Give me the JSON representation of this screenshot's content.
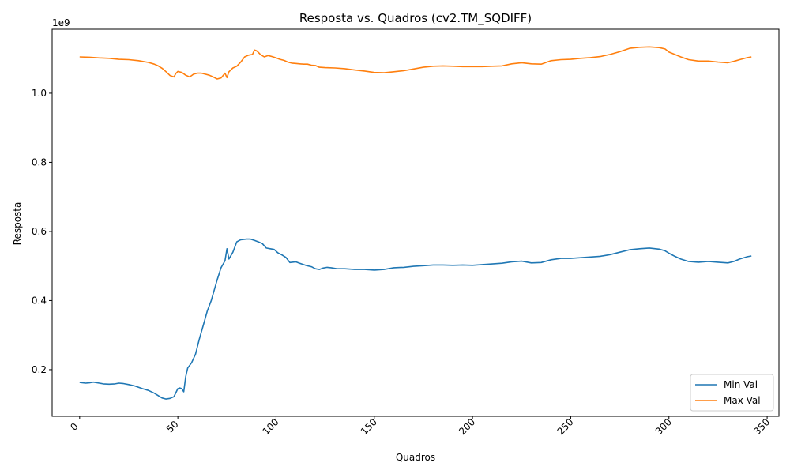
{
  "chart_data": {
    "type": "line",
    "title": "Resposta vs. Quadros (cv2.TM_SQDIFF)",
    "xlabel": "Quadros",
    "ylabel": "Resposta",
    "y_offset_text": "1e9",
    "xlim": [
      -14,
      356
    ],
    "ylim": [
      0.065,
      1.185
    ],
    "x_ticks": [
      0,
      50,
      100,
      150,
      200,
      250,
      300,
      350
    ],
    "x_tick_labels": [
      "0",
      "50",
      "100",
      "150",
      "200",
      "250",
      "300",
      "350"
    ],
    "y_ticks": [
      0.2,
      0.4,
      0.6,
      0.8,
      1.0
    ],
    "y_tick_labels": [
      "0.2",
      "0.4",
      "0.6",
      "0.8",
      "1.0"
    ],
    "grid": false,
    "legend_position": "bottom-right",
    "series": [
      {
        "name": "Min Val",
        "color": "#1f77b4",
        "x": [
          0,
          3,
          5,
          7,
          10,
          12,
          15,
          18,
          20,
          22,
          25,
          28,
          30,
          32,
          35,
          38,
          40,
          42,
          44,
          46,
          48,
          50,
          51,
          52,
          53,
          54,
          55,
          57,
          59,
          61,
          63,
          65,
          67,
          68,
          70,
          72,
          74,
          75,
          76,
          78,
          80,
          82,
          85,
          87,
          89,
          91,
          93,
          95,
          97,
          99,
          101,
          103,
          105,
          107,
          110,
          112,
          115,
          118,
          120,
          122,
          124,
          126,
          128,
          131,
          135,
          140,
          145,
          150,
          155,
          160,
          165,
          170,
          175,
          180,
          185,
          190,
          195,
          200,
          205,
          210,
          215,
          220,
          225,
          230,
          235,
          240,
          245,
          250,
          255,
          260,
          265,
          270,
          275,
          280,
          285,
          290,
          295,
          298,
          300,
          303,
          306,
          310,
          315,
          320,
          325,
          330,
          333,
          336,
          340,
          342
        ],
        "y": [
          0.163,
          0.161,
          0.162,
          0.164,
          0.161,
          0.159,
          0.158,
          0.159,
          0.161,
          0.16,
          0.157,
          0.153,
          0.149,
          0.145,
          0.14,
          0.132,
          0.125,
          0.118,
          0.115,
          0.117,
          0.122,
          0.145,
          0.147,
          0.145,
          0.136,
          0.18,
          0.205,
          0.22,
          0.245,
          0.29,
          0.33,
          0.37,
          0.4,
          0.42,
          0.46,
          0.495,
          0.515,
          0.55,
          0.52,
          0.54,
          0.57,
          0.576,
          0.578,
          0.578,
          0.574,
          0.57,
          0.565,
          0.552,
          0.55,
          0.548,
          0.538,
          0.532,
          0.525,
          0.51,
          0.512,
          0.508,
          0.502,
          0.498,
          0.492,
          0.49,
          0.494,
          0.496,
          0.495,
          0.492,
          0.492,
          0.49,
          0.49,
          0.488,
          0.49,
          0.495,
          0.496,
          0.499,
          0.501,
          0.503,
          0.503,
          0.502,
          0.503,
          0.502,
          0.504,
          0.506,
          0.508,
          0.512,
          0.514,
          0.509,
          0.51,
          0.518,
          0.522,
          0.522,
          0.524,
          0.526,
          0.528,
          0.533,
          0.54,
          0.547,
          0.55,
          0.552,
          0.549,
          0.544,
          0.537,
          0.528,
          0.52,
          0.513,
          0.511,
          0.513,
          0.511,
          0.509,
          0.513,
          0.52,
          0.527,
          0.529
        ]
      },
      {
        "name": "Max Val",
        "color": "#ff7f0e",
        "x": [
          0,
          5,
          10,
          15,
          20,
          25,
          30,
          35,
          38,
          40,
          42,
          44,
          46,
          48,
          49,
          50,
          52,
          54,
          56,
          58,
          60,
          62,
          64,
          66,
          68,
          70,
          72,
          74,
          75,
          76,
          78,
          80,
          82,
          84,
          86,
          88,
          89,
          90,
          91,
          92,
          94,
          96,
          98,
          100,
          102,
          104,
          106,
          108,
          110,
          112,
          114,
          116,
          118,
          120,
          122,
          125,
          130,
          135,
          140,
          145,
          150,
          155,
          160,
          165,
          170,
          175,
          180,
          185,
          190,
          195,
          200,
          205,
          210,
          215,
          220,
          225,
          230,
          235,
          240,
          245,
          250,
          255,
          260,
          265,
          270,
          275,
          280,
          285,
          290,
          295,
          298,
          300,
          303,
          306,
          310,
          315,
          320,
          325,
          330,
          333,
          336,
          340,
          342
        ],
        "y": [
          1.105,
          1.104,
          1.102,
          1.101,
          1.098,
          1.097,
          1.094,
          1.089,
          1.084,
          1.079,
          1.072,
          1.062,
          1.051,
          1.047,
          1.057,
          1.063,
          1.06,
          1.052,
          1.047,
          1.055,
          1.058,
          1.058,
          1.055,
          1.052,
          1.047,
          1.041,
          1.044,
          1.058,
          1.045,
          1.062,
          1.073,
          1.078,
          1.09,
          1.105,
          1.11,
          1.112,
          1.125,
          1.123,
          1.118,
          1.112,
          1.105,
          1.109,
          1.106,
          1.102,
          1.098,
          1.095,
          1.09,
          1.087,
          1.086,
          1.085,
          1.084,
          1.084,
          1.081,
          1.08,
          1.075,
          1.074,
          1.073,
          1.071,
          1.067,
          1.064,
          1.06,
          1.059,
          1.062,
          1.065,
          1.07,
          1.075,
          1.078,
          1.079,
          1.078,
          1.077,
          1.077,
          1.077,
          1.078,
          1.079,
          1.085,
          1.088,
          1.085,
          1.084,
          1.094,
          1.097,
          1.098,
          1.101,
          1.103,
          1.106,
          1.112,
          1.12,
          1.13,
          1.133,
          1.134,
          1.132,
          1.128,
          1.119,
          1.112,
          1.105,
          1.097,
          1.093,
          1.093,
          1.09,
          1.088,
          1.092,
          1.097,
          1.103,
          1.105
        ]
      }
    ]
  }
}
